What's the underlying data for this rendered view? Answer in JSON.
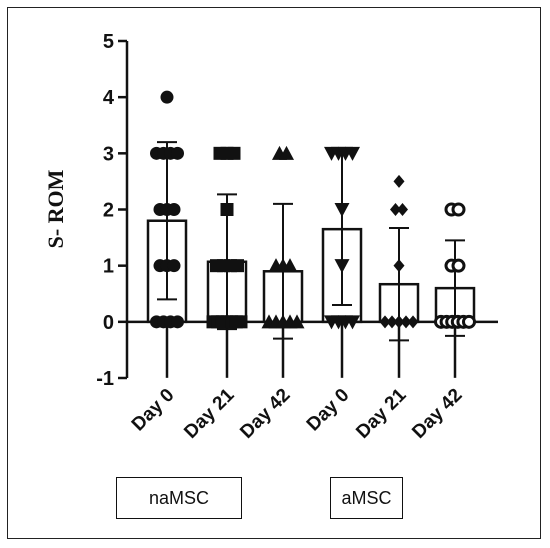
{
  "chart_data": {
    "type": "bar",
    "ylabel": "S- ROM",
    "ylim": [
      -1,
      5
    ],
    "yticks": [
      -1,
      0,
      1,
      2,
      3,
      4,
      5
    ],
    "categories": [
      "Day 0",
      "Day 21",
      "Day 42",
      "Day 0",
      "Day 21",
      "Day 42"
    ],
    "groups": [
      {
        "label": "naMSC",
        "categories": [
          0,
          1,
          2
        ]
      },
      {
        "label": "aMSC",
        "categories": [
          3,
          4,
          5
        ]
      }
    ],
    "series": [
      {
        "category": "Day 0",
        "group": "naMSC",
        "mean": 1.8,
        "sd": 1.4,
        "marker": "circle",
        "points": [
          4,
          3,
          3,
          3,
          3,
          2,
          2,
          2,
          1,
          1,
          1,
          0,
          0,
          0,
          0
        ]
      },
      {
        "category": "Day 21",
        "group": "naMSC",
        "mean": 1.07,
        "sd": 1.2,
        "marker": "square",
        "points": [
          3,
          3,
          3,
          2,
          1,
          1,
          1,
          1,
          0,
          0,
          0,
          0,
          0,
          0,
          0
        ]
      },
      {
        "category": "Day 42",
        "group": "naMSC",
        "mean": 0.9,
        "sd": 1.2,
        "marker": "triangle-up",
        "points": [
          3,
          3,
          1,
          1,
          1,
          0,
          0,
          0,
          0,
          0
        ]
      },
      {
        "category": "Day 0",
        "group": "aMSC",
        "mean": 1.65,
        "sd": 1.35,
        "marker": "triangle-down",
        "points": [
          3,
          3,
          3,
          3,
          2,
          1,
          0,
          0,
          0,
          0
        ]
      },
      {
        "category": "Day 21",
        "group": "aMSC",
        "mean": 0.67,
        "sd": 1.0,
        "marker": "diamond",
        "points": [
          2.5,
          2,
          2,
          1,
          0,
          0,
          0,
          0,
          0
        ]
      },
      {
        "category": "Day 42",
        "group": "aMSC",
        "mean": 0.6,
        "sd": 0.85,
        "marker": "circle-open",
        "points": [
          2,
          2,
          1,
          1,
          0,
          0,
          0,
          0,
          0,
          0
        ]
      }
    ],
    "grid": false,
    "legend": "none"
  },
  "colors": {
    "axis": "#111111",
    "bar_fill": "#ffffff",
    "marker": "#111111"
  }
}
